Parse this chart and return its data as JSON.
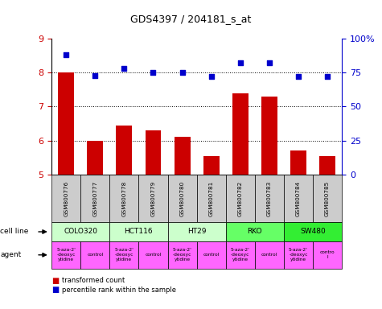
{
  "title": "GDS4397 / 204181_s_at",
  "samples": [
    "GSM800776",
    "GSM800777",
    "GSM800778",
    "GSM800779",
    "GSM800780",
    "GSM800781",
    "GSM800782",
    "GSM800783",
    "GSM800784",
    "GSM800785"
  ],
  "bar_values": [
    8.0,
    6.0,
    6.45,
    6.3,
    6.1,
    5.55,
    7.4,
    7.3,
    5.7,
    5.55
  ],
  "dot_values_right": [
    88.0,
    73.0,
    78.0,
    75.0,
    75.0,
    72.0,
    82.0,
    82.0,
    72.0,
    72.0
  ],
  "ylim_left": [
    5.0,
    9.0
  ],
  "ylim_right": [
    0,
    100
  ],
  "yticks_left": [
    5,
    6,
    7,
    8,
    9
  ],
  "yticks_right": [
    0,
    25,
    50,
    75,
    100
  ],
  "bar_color": "#cc0000",
  "dot_color": "#0000cc",
  "bar_bottom": 5.0,
  "cell_lines": [
    {
      "label": "COLO320",
      "start": 0,
      "end": 2,
      "color": "#ccffcc"
    },
    {
      "label": "HCT116",
      "start": 2,
      "end": 4,
      "color": "#ccffcc"
    },
    {
      "label": "HT29",
      "start": 4,
      "end": 6,
      "color": "#ccffcc"
    },
    {
      "label": "RKO",
      "start": 6,
      "end": 8,
      "color": "#66ff66"
    },
    {
      "label": "SW480",
      "start": 8,
      "end": 10,
      "color": "#33ee33"
    }
  ],
  "agents": [
    {
      "label": "5-aza-2'\n-deoxyc\nytidine",
      "start": 0,
      "end": 1,
      "color": "#ff66ff"
    },
    {
      "label": "control",
      "start": 1,
      "end": 2,
      "color": "#ff66ff"
    },
    {
      "label": "5-aza-2'\n-deoxyc\nytidine",
      "start": 2,
      "end": 3,
      "color": "#ff66ff"
    },
    {
      "label": "control",
      "start": 3,
      "end": 4,
      "color": "#ff66ff"
    },
    {
      "label": "5-aza-2'\n-deoxyc\nytidine",
      "start": 4,
      "end": 5,
      "color": "#ff66ff"
    },
    {
      "label": "control",
      "start": 5,
      "end": 6,
      "color": "#ff66ff"
    },
    {
      "label": "5-aza-2'\n-deoxyc\nytidine",
      "start": 6,
      "end": 7,
      "color": "#ff66ff"
    },
    {
      "label": "control",
      "start": 7,
      "end": 8,
      "color": "#ff66ff"
    },
    {
      "label": "5-aza-2'\n-deoxyc\nytidine",
      "start": 8,
      "end": 9,
      "color": "#ff66ff"
    },
    {
      "label": "contro\nl",
      "start": 9,
      "end": 10,
      "color": "#ff66ff"
    }
  ],
  "legend_items": [
    {
      "label": "transformed count",
      "color": "#cc0000"
    },
    {
      "label": "percentile rank within the sample",
      "color": "#0000cc"
    }
  ],
  "tick_label_color_left": "#cc0000",
  "tick_label_color_right": "#0000cc",
  "sample_box_color": "#cccccc",
  "cell_line_row_label": "cell line",
  "agent_row_label": "agent"
}
